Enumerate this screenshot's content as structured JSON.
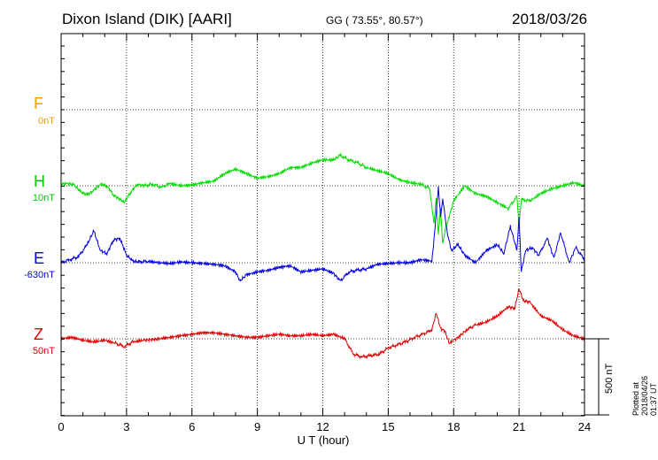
{
  "header": {
    "station": "Dixon Island (DIK)  [AARI]",
    "coords": "GG ( 73.55°,  80.57°)",
    "date": "2018/03/26"
  },
  "channels": [
    {
      "name": "F",
      "baseline": "0nT",
      "color": "#f0a000"
    },
    {
      "name": "H",
      "baseline": "10nT",
      "color": "#00dd00"
    },
    {
      "name": "E",
      "baseline": "-630nT",
      "color": "#0000e0"
    },
    {
      "name": "Z",
      "baseline": "50nT",
      "color": "#e00000"
    }
  ],
  "axis": {
    "xlabel": "U T (hour)",
    "xticks": [
      "0",
      "3",
      "6",
      "9",
      "12",
      "15",
      "18",
      "21",
      "24"
    ],
    "scale_label": "500 nT",
    "scale_nT": 500
  },
  "plotted": "Plotted at 2018/04/26 01:37 UT",
  "chart_data": {
    "type": "line",
    "title": "Dixon Island (DIK)  [AARI]",
    "xlabel": "U T (hour)",
    "xlim": [
      0,
      24
    ],
    "grid": true,
    "series": [
      {
        "name": "F",
        "baseline": "0nT",
        "x": [],
        "values": []
      },
      {
        "name": "H",
        "baseline": "10nT",
        "x": [
          0,
          0.3,
          0.6,
          0.9,
          1.2,
          1.5,
          1.8,
          2.1,
          2.4,
          2.7,
          2.9,
          3.2,
          3.5,
          3.8,
          4.2,
          4.6,
          5.0,
          5.5,
          6.0,
          6.5,
          7.0,
          7.5,
          8.0,
          8.5,
          9.0,
          9.5,
          10.0,
          10.5,
          11.0,
          11.5,
          12.0,
          12.5,
          12.8,
          13.2,
          13.6,
          14.0,
          14.5,
          15.0,
          15.5,
          16.0,
          16.5,
          16.9,
          17.1,
          17.2,
          17.3,
          17.4,
          17.5,
          17.6,
          17.8,
          18.0,
          18.5,
          19.0,
          19.5,
          20.0,
          20.5,
          20.9,
          21.0,
          21.1,
          21.5,
          22.0,
          22.5,
          23.0,
          23.5,
          24.0
        ],
        "values": [
          10,
          15,
          5,
          -40,
          -60,
          -30,
          10,
          0,
          -60,
          -90,
          -110,
          -40,
          10,
          0,
          10,
          -10,
          15,
          0,
          5,
          20,
          30,
          80,
          110,
          80,
          50,
          60,
          80,
          120,
          120,
          150,
          170,
          170,
          200,
          170,
          150,
          120,
          100,
          80,
          40,
          20,
          10,
          -20,
          -250,
          -80,
          -320,
          -150,
          -380,
          -300,
          -200,
          -100,
          0,
          -50,
          -70,
          -110,
          -150,
          -70,
          -260,
          -90,
          -100,
          -50,
          -20,
          0,
          20,
          0
        ]
      },
      {
        "name": "E",
        "baseline": "-630nT",
        "x": [
          0,
          0.4,
          0.8,
          1.2,
          1.5,
          1.8,
          2.1,
          2.4,
          2.7,
          3.0,
          3.3,
          3.6,
          4.0,
          4.5,
          5.0,
          5.5,
          6.0,
          6.5,
          7.0,
          7.5,
          8.0,
          8.2,
          8.5,
          9.0,
          9.5,
          10.0,
          10.5,
          11.0,
          11.5,
          12.0,
          12.5,
          12.8,
          13.2,
          13.6,
          14.0,
          14.5,
          15.0,
          15.5,
          16.0,
          16.5,
          17.0,
          17.1,
          17.3,
          17.4,
          17.5,
          17.7,
          17.9,
          18.2,
          18.5,
          19.0,
          19.5,
          20.0,
          20.3,
          20.6,
          20.9,
          21.0,
          21.1,
          21.3,
          21.6,
          21.9,
          22.3,
          22.6,
          22.9,
          23.3,
          23.6,
          24.0
        ],
        "values": [
          0,
          20,
          40,
          120,
          210,
          80,
          60,
          150,
          160,
          50,
          10,
          5,
          10,
          0,
          -5,
          5,
          0,
          -5,
          -10,
          -20,
          -60,
          -120,
          -80,
          -60,
          -50,
          -30,
          -20,
          -60,
          -50,
          -40,
          -70,
          -120,
          -60,
          -50,
          -40,
          -10,
          -5,
          0,
          0,
          20,
          10,
          150,
          500,
          300,
          420,
          200,
          80,
          120,
          50,
          0,
          80,
          120,
          60,
          240,
          80,
          300,
          -60,
          80,
          100,
          50,
          160,
          30,
          200,
          0,
          100,
          20
        ]
      },
      {
        "name": "Z",
        "baseline": "50nT",
        "x": [
          0,
          0.5,
          1.0,
          1.5,
          2.0,
          2.5,
          2.9,
          3.3,
          3.8,
          4.5,
          5.0,
          5.5,
          6.0,
          6.5,
          7.0,
          7.5,
          8.0,
          8.5,
          9.0,
          9.5,
          10.0,
          10.5,
          11.0,
          11.5,
          12.0,
          12.5,
          13.0,
          13.4,
          13.8,
          14.2,
          14.6,
          15.0,
          15.4,
          15.8,
          16.2,
          16.6,
          17.0,
          17.2,
          17.4,
          17.6,
          17.8,
          18.0,
          18.3,
          18.6,
          19.0,
          19.5,
          20.0,
          20.5,
          20.8,
          21.0,
          21.2,
          21.5,
          22.0,
          22.5,
          23.0,
          23.5,
          24.0
        ],
        "values": [
          0,
          10,
          -10,
          -20,
          -10,
          -30,
          -50,
          -20,
          -10,
          0,
          10,
          20,
          30,
          40,
          40,
          30,
          20,
          10,
          10,
          20,
          30,
          20,
          20,
          30,
          20,
          30,
          0,
          -100,
          -120,
          -110,
          -100,
          -60,
          -40,
          -20,
          10,
          30,
          60,
          170,
          70,
          50,
          -30,
          -10,
          20,
          60,
          90,
          110,
          150,
          210,
          200,
          330,
          250,
          240,
          150,
          120,
          60,
          20,
          0
        ]
      }
    ]
  }
}
